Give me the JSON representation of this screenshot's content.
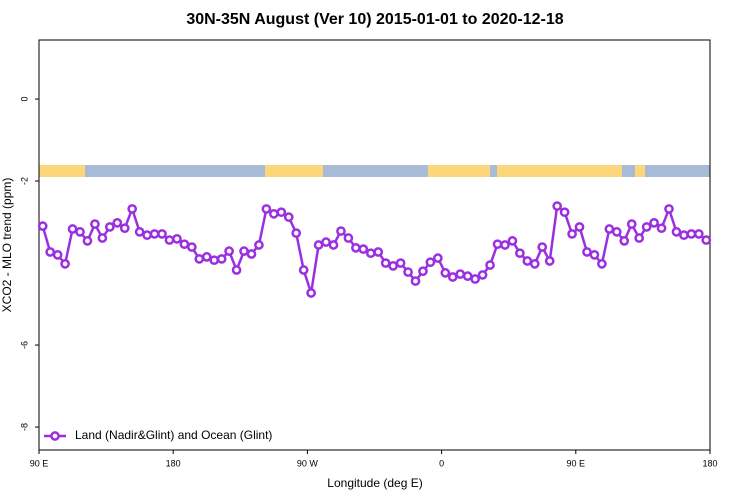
{
  "chart_data": {
    "type": "line",
    "title": "30N-35N August (Ver 10)   2015-01-01 to 2020-12-18",
    "x_label": "Longitude (deg E)",
    "y_label": "XCO2 - MLO trend (ppm)",
    "xlim": [
      90,
      540
    ],
    "ylim": [
      -8.56,
      1.44
    ],
    "xticks": [
      {
        "value": 90,
        "label": "90 E"
      },
      180,
      {
        "value": 270,
        "label": "90 W"
      },
      {
        "value": 360,
        "label": "0"
      },
      {
        "value": 450,
        "label": "90 E"
      },
      {
        "value": 540,
        "label": "180"
      }
    ],
    "yticks": [
      0,
      -2,
      -6,
      -8
    ],
    "legend": "bottom-left",
    "x": [
      92.5,
      97.5,
      102.5,
      107.5,
      112.5,
      117.5,
      122.5,
      127.5,
      132.5,
      137.5,
      142.5,
      147.5,
      152.5,
      157.5,
      162.5,
      167.5,
      172.5,
      177.5,
      182.5,
      187.5,
      192.5,
      197.5,
      202.5,
      207.5,
      212.5,
      217.5,
      222.5,
      227.5,
      232.5,
      237.5,
      242.5,
      247.5,
      252.5,
      257.5,
      262.5,
      267.5,
      272.5,
      277.5,
      282.5,
      287.5,
      292.5,
      297.5,
      302.5,
      307.5,
      312.5,
      317.5,
      322.5,
      327.5,
      332.5,
      337.5,
      342.5,
      347.5,
      352.5,
      357.5,
      362.5,
      367.5,
      372.5,
      377.5,
      382.5,
      387.5,
      392.5,
      397.5,
      402.5,
      407.5,
      412.5,
      417.5,
      422.5,
      427.5,
      432.5,
      437.5,
      442.5,
      447.5,
      452.5,
      457.5,
      462.5,
      467.5,
      472.5,
      477.5,
      482.5,
      487.5,
      492.5,
      497.5,
      502.5,
      507.5,
      512.5,
      517.5,
      522.5,
      527.5,
      532.5,
      537.5
    ],
    "series": [
      {
        "name": "Land (Nadir&Glint) and Ocean (Glint)",
        "color": "#9b2fe0",
        "values": [
          -3.1,
          -3.73,
          -3.8,
          -4.02,
          -3.17,
          -3.24,
          -3.46,
          -3.05,
          -3.39,
          -3.12,
          -3.02,
          -3.15,
          -2.68,
          -3.24,
          -3.32,
          -3.29,
          -3.29,
          -3.44,
          -3.41,
          -3.54,
          -3.61,
          -3.9,
          -3.85,
          -3.93,
          -3.9,
          -3.71,
          -4.17,
          -3.71,
          -3.78,
          -3.56,
          -2.68,
          -2.8,
          -2.76,
          -2.88,
          -3.27,
          -4.17,
          -4.73,
          -3.56,
          -3.49,
          -3.56,
          -3.22,
          -3.39,
          -3.63,
          -3.66,
          -3.76,
          -3.73,
          -4.0,
          -4.07,
          -4.0,
          -4.22,
          -4.44,
          -4.2,
          -3.98,
          -3.88,
          -4.24,
          -4.34,
          -4.27,
          -4.32,
          -4.39,
          -4.29,
          -4.05,
          -3.54,
          -3.56,
          -3.46,
          -3.76,
          -3.95,
          -4.02,
          -3.61,
          -3.95,
          -2.61,
          -2.76,
          -3.29,
          -3.12,
          -3.73,
          -3.8,
          -4.02,
          -3.17,
          -3.24,
          -3.46,
          -3.05,
          -3.39,
          -3.12,
          -3.02,
          -3.15,
          -2.68,
          -3.24,
          -3.32,
          -3.29,
          -3.29,
          -3.44
        ]
      }
    ]
  }
}
